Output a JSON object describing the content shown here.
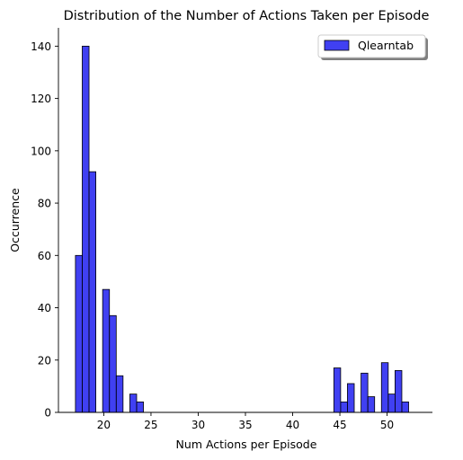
{
  "chart_data": {
    "type": "bar",
    "title": "Distribution of the Number of Actions Taken per Episode",
    "xlabel": "Num Actions per Episode",
    "ylabel": "Occurrence",
    "xlim": [
      15.2,
      54.8
    ],
    "ylim": [
      0,
      147
    ],
    "xticks": [
      20,
      25,
      30,
      35,
      40,
      45,
      50
    ],
    "yticks": [
      0,
      20,
      40,
      60,
      80,
      100,
      120,
      140
    ],
    "grid": false,
    "legend_position": "top-right",
    "bar_color": "#0000ee",
    "bar_edge_color": "#000000",
    "bin_width": 0.72,
    "series": [
      {
        "name": "Qlearntab",
        "bins": [
          {
            "x0": 17.0,
            "count": 60
          },
          {
            "x0": 17.72,
            "count": 140
          },
          {
            "x0": 18.44,
            "count": 92
          },
          {
            "x0": 19.16,
            "count": 0
          },
          {
            "x0": 19.88,
            "count": 47
          },
          {
            "x0": 20.6,
            "count": 37
          },
          {
            "x0": 21.32,
            "count": 14
          },
          {
            "x0": 22.04,
            "count": 0
          },
          {
            "x0": 22.76,
            "count": 7
          },
          {
            "x0": 23.48,
            "count": 4
          },
          {
            "x0": 44.36,
            "count": 17
          },
          {
            "x0": 45.08,
            "count": 4
          },
          {
            "x0": 45.8,
            "count": 11
          },
          {
            "x0": 46.52,
            "count": 0
          },
          {
            "x0": 47.24,
            "count": 15
          },
          {
            "x0": 47.96,
            "count": 6
          },
          {
            "x0": 48.68,
            "count": 0
          },
          {
            "x0": 49.4,
            "count": 19
          },
          {
            "x0": 50.12,
            "count": 7
          },
          {
            "x0": 50.84,
            "count": 16
          },
          {
            "x0": 51.56,
            "count": 4
          }
        ]
      }
    ]
  }
}
